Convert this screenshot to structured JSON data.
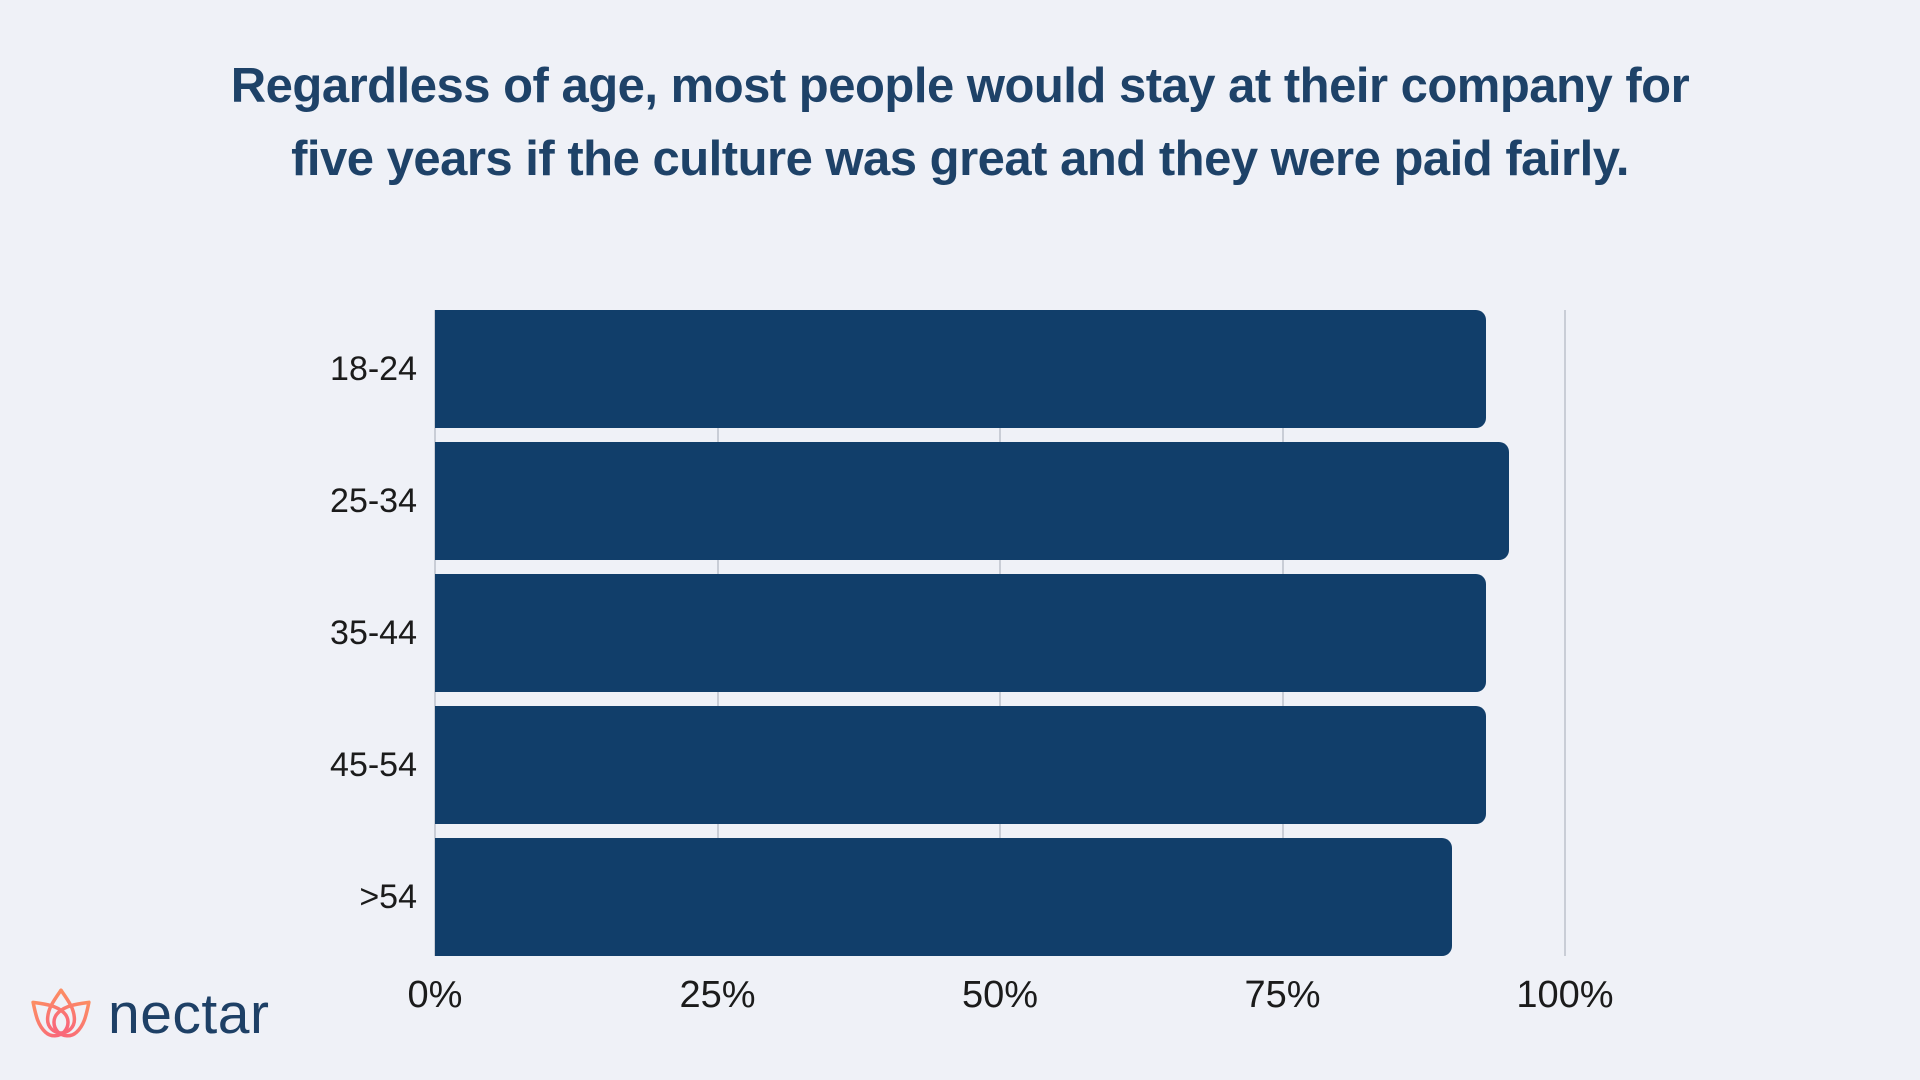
{
  "title": {
    "line1": "Regardless of age, most people would stay at their company for",
    "line2": "five years if the culture was great and they were paid fairly."
  },
  "logo": {
    "text": "nectar",
    "icon": "lotus-flower-icon"
  },
  "colors": {
    "background": "#eff1f7",
    "bar": "#113e6a",
    "title": "#1e4268",
    "text": "#1b1b1b",
    "gridline": "#c9cdd6",
    "logo_coral_top": "#fc8d63",
    "logo_coral_bottom": "#f9687a",
    "logo_text": "#1e4066"
  },
  "chart_data": {
    "type": "bar",
    "orientation": "horizontal",
    "title": "Regardless of age, most people would stay at their company for five years if the culture was great and they were paid fairly.",
    "categories": [
      "18-24",
      "25-34",
      "35-44",
      "45-54",
      ">54"
    ],
    "values": [
      93,
      95,
      93,
      93,
      90
    ],
    "unit": "%",
    "xlabel": "",
    "ylabel": "",
    "xlim": [
      0,
      100
    ],
    "x_ticks": [
      "0%",
      "25%",
      "50%",
      "75%",
      "100%"
    ],
    "x_tick_values": [
      0,
      25,
      50,
      75,
      100
    ],
    "grid": true,
    "legend": false
  }
}
